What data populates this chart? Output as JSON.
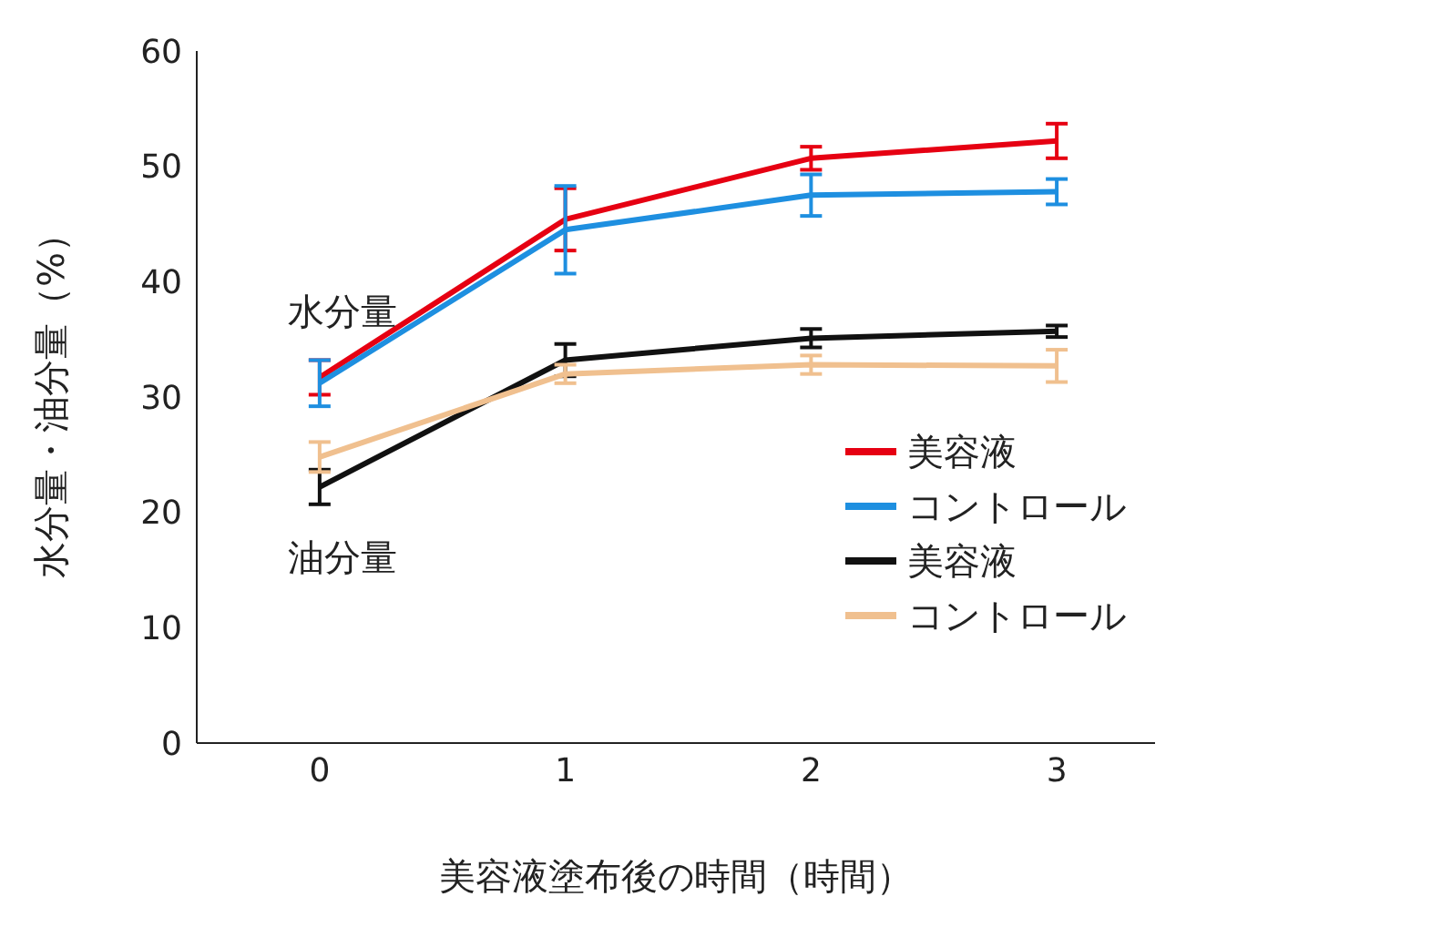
{
  "chart_data": {
    "type": "line",
    "xlabel": "美容液塗布後の時間（時間）",
    "ylabel": "水分量・油分量（%）",
    "x": [
      0,
      1,
      2,
      3
    ],
    "xlim": [
      -0.5,
      3.4
    ],
    "xticks": [
      0,
      1,
      2,
      3
    ],
    "ylim": [
      0,
      60
    ],
    "yticks": [
      0,
      10,
      20,
      30,
      40,
      50,
      60
    ],
    "series": [
      {
        "name": "美容液",
        "color": "#e60012",
        "values": [
          31.7,
          45.4,
          50.7,
          52.2
        ],
        "errors": [
          1.5,
          2.7,
          1.0,
          1.5
        ]
      },
      {
        "name": "コントロール",
        "color": "#1e8fe0",
        "values": [
          31.2,
          44.5,
          47.5,
          47.8
        ],
        "errors": [
          2.0,
          3.8,
          1.8,
          1.1
        ]
      },
      {
        "name": "美容液",
        "color": "#111111",
        "values": [
          22.2,
          33.2,
          35.1,
          35.7
        ],
        "errors": [
          1.5,
          1.4,
          0.8,
          0.5
        ]
      },
      {
        "name": "コントロール",
        "color": "#f0c08f",
        "values": [
          24.8,
          32.0,
          32.8,
          32.7
        ],
        "errors": [
          1.3,
          0.8,
          0.8,
          1.4
        ]
      }
    ],
    "annotations": [
      "水分量",
      "油分量"
    ],
    "legend": "right",
    "grid": false,
    "marker": "none"
  }
}
